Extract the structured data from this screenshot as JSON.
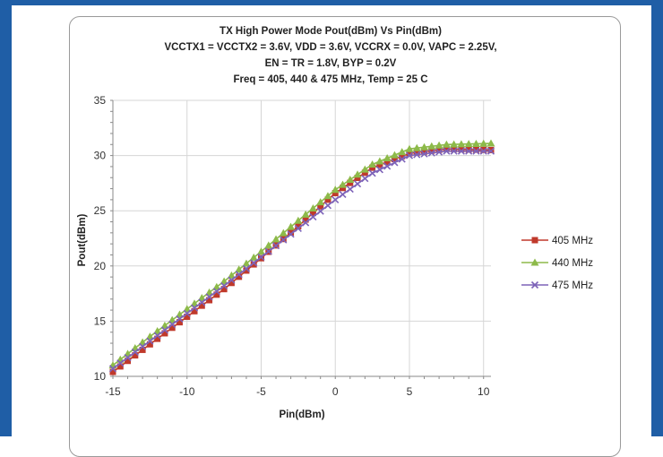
{
  "chart_data": {
    "type": "line",
    "title": [
      "TX High Power Mode Pout(dBm) Vs Pin(dBm)",
      "VCCTX1 = VCCTX2 = 3.6V, VDD = 3.6V, VCCRX = 0.0V, VAPC = 2.25V,",
      "EN = TR = 1.8V, BYP = 0.2V",
      "Freq = 405, 440 & 475 MHz, Temp = 25 C"
    ],
    "xlabel": "Pin(dBm)",
    "ylabel": "Pout(dBm)",
    "xlim": [
      -15,
      10.5
    ],
    "ylim": [
      10,
      35
    ],
    "xticks": [
      -15,
      -10,
      -5,
      0,
      5,
      10
    ],
    "yticks": [
      10,
      15,
      20,
      25,
      30,
      35
    ],
    "xtick_labels": [
      "-15",
      "-10",
      "-5",
      "0",
      "5",
      "10"
    ],
    "ytick_labels": [
      "10",
      "15",
      "20",
      "25",
      "30",
      "35"
    ],
    "grid": true,
    "legend_position": "right",
    "series": [
      {
        "name": "405 MHz",
        "color": "#c0392b",
        "marker": "square",
        "x": [
          -15,
          -12.5,
          -10,
          -7.5,
          -5,
          -2.5,
          0,
          2.5,
          5,
          7.5,
          10.5
        ],
        "y": [
          10.4,
          12.9,
          15.4,
          17.9,
          20.7,
          23.6,
          26.6,
          28.9,
          30.2,
          30.6,
          30.5
        ]
      },
      {
        "name": "440 MHz",
        "color": "#8dba4a",
        "marker": "triangle",
        "x": [
          -15,
          -12.5,
          -10,
          -7.5,
          -5,
          -2.5,
          0,
          2.5,
          5,
          7.5,
          10.5
        ],
        "y": [
          11.0,
          13.6,
          16.1,
          18.6,
          21.3,
          24.1,
          26.9,
          29.2,
          30.6,
          31.0,
          31.1
        ]
      },
      {
        "name": "475 MHz",
        "color": "#7d63b8",
        "marker": "x",
        "x": [
          -15,
          -12.5,
          -10,
          -7.5,
          -5,
          -2.5,
          0,
          2.5,
          5,
          7.5,
          10.5
        ],
        "y": [
          10.7,
          13.2,
          15.7,
          18.2,
          20.8,
          23.4,
          26.0,
          28.4,
          30.0,
          30.4,
          30.4
        ]
      }
    ]
  }
}
